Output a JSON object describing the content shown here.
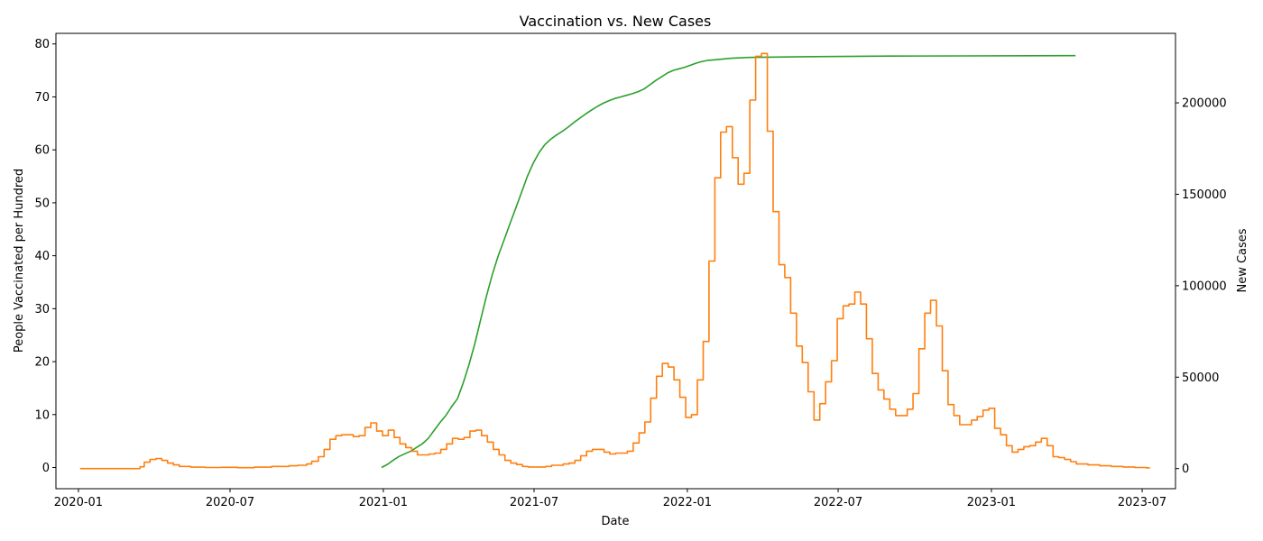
{
  "chart_data": {
    "type": "line",
    "title": "Vaccination vs. New Cases",
    "xlabel": "Date",
    "x_axis_type": "date",
    "xlim": [
      "2019-12-05",
      "2023-08-10"
    ],
    "x_ticks": [
      "2020-01",
      "2020-07",
      "2021-01",
      "2021-07",
      "2022-01",
      "2022-07",
      "2023-01",
      "2023-07"
    ],
    "grid": false,
    "y_left": {
      "label": "People Vaccinated per Hundred",
      "color": "#2ca02c",
      "ylim": [
        -4,
        82
      ],
      "ticks": [
        "0",
        "10",
        "20",
        "30",
        "40",
        "50",
        "60",
        "70",
        "80"
      ]
    },
    "y_right": {
      "label": "New Cases",
      "color": "#ff7f0e",
      "ylim": [
        -11000,
        238000
      ],
      "ticks": [
        "0",
        "50000",
        "100000",
        "150000",
        "200000"
      ]
    },
    "series": [
      {
        "axis": "left",
        "color": "#2ca02c",
        "points": [
          [
            "2020-12-30",
            0
          ],
          [
            "2021-01-06",
            0.6
          ],
          [
            "2021-01-13",
            1.4
          ],
          [
            "2021-01-20",
            2.1
          ],
          [
            "2021-01-27",
            2.6
          ],
          [
            "2021-02-03",
            3.1
          ],
          [
            "2021-02-10",
            3.8
          ],
          [
            "2021-02-17",
            4.5
          ],
          [
            "2021-02-24",
            5.5
          ],
          [
            "2021-03-03",
            7.0
          ],
          [
            "2021-03-10",
            8.5
          ],
          [
            "2021-03-17",
            9.8
          ],
          [
            "2021-03-24",
            11.5
          ],
          [
            "2021-03-31",
            13.0
          ],
          [
            "2021-04-07",
            16.0
          ],
          [
            "2021-04-14",
            19.5
          ],
          [
            "2021-04-21",
            23.5
          ],
          [
            "2021-04-28",
            28.0
          ],
          [
            "2021-05-05",
            32.5
          ],
          [
            "2021-05-12",
            36.5
          ],
          [
            "2021-05-19",
            40.0
          ],
          [
            "2021-05-26",
            43.0
          ],
          [
            "2021-06-02",
            46.0
          ],
          [
            "2021-06-09",
            49.0
          ],
          [
            "2021-06-16",
            52.0
          ],
          [
            "2021-06-23",
            55.0
          ],
          [
            "2021-06-30",
            57.5
          ],
          [
            "2021-07-07",
            59.5
          ],
          [
            "2021-07-14",
            61.0
          ],
          [
            "2021-07-21",
            62.0
          ],
          [
            "2021-07-28",
            62.8
          ],
          [
            "2021-08-04",
            63.5
          ],
          [
            "2021-08-11",
            64.3
          ],
          [
            "2021-08-18",
            65.2
          ],
          [
            "2021-08-25",
            66.0
          ],
          [
            "2021-09-01",
            66.8
          ],
          [
            "2021-09-08",
            67.5
          ],
          [
            "2021-09-15",
            68.2
          ],
          [
            "2021-09-22",
            68.8
          ],
          [
            "2021-09-29",
            69.3
          ],
          [
            "2021-10-06",
            69.7
          ],
          [
            "2021-10-13",
            70.0
          ],
          [
            "2021-10-20",
            70.3
          ],
          [
            "2021-10-27",
            70.6
          ],
          [
            "2021-11-03",
            71.0
          ],
          [
            "2021-11-10",
            71.5
          ],
          [
            "2021-11-17",
            72.3
          ],
          [
            "2021-11-24",
            73.1
          ],
          [
            "2021-12-01",
            73.8
          ],
          [
            "2021-12-08",
            74.5
          ],
          [
            "2021-12-15",
            75.0
          ],
          [
            "2021-12-22",
            75.3
          ],
          [
            "2021-12-29",
            75.6
          ],
          [
            "2022-01-05",
            76.0
          ],
          [
            "2022-01-12",
            76.4
          ],
          [
            "2022-01-19",
            76.7
          ],
          [
            "2022-01-26",
            76.9
          ],
          [
            "2022-02-09",
            77.1
          ],
          [
            "2022-02-23",
            77.3
          ],
          [
            "2022-03-16",
            77.45
          ],
          [
            "2022-04-06",
            77.5
          ],
          [
            "2022-06-01",
            77.6
          ],
          [
            "2022-09-01",
            77.7
          ],
          [
            "2022-12-01",
            77.75
          ],
          [
            "2023-04-12",
            77.8
          ]
        ]
      },
      {
        "axis": "right",
        "color": "#ff7f0e",
        "step": true,
        "points": [
          [
            "2020-01-03",
            0
          ],
          [
            "2020-03-15",
            1000
          ],
          [
            "2020-03-20",
            3500
          ],
          [
            "2020-03-27",
            5000
          ],
          [
            "2020-04-03",
            5500
          ],
          [
            "2020-04-10",
            4500
          ],
          [
            "2020-04-17",
            3000
          ],
          [
            "2020-04-24",
            2000
          ],
          [
            "2020-05-01",
            1200
          ],
          [
            "2020-05-15",
            800
          ],
          [
            "2020-06-01",
            600
          ],
          [
            "2020-06-20",
            700
          ],
          [
            "2020-07-10",
            500
          ],
          [
            "2020-07-30",
            800
          ],
          [
            "2020-08-20",
            1200
          ],
          [
            "2020-09-10",
            1500
          ],
          [
            "2020-09-20",
            1800
          ],
          [
            "2020-10-01",
            2500
          ],
          [
            "2020-10-07",
            4000
          ],
          [
            "2020-10-15",
            6500
          ],
          [
            "2020-10-22",
            10500
          ],
          [
            "2020-10-29",
            16000
          ],
          [
            "2020-11-05",
            18000
          ],
          [
            "2020-11-12",
            18500
          ],
          [
            "2020-11-26",
            17500
          ],
          [
            "2020-12-03",
            18000
          ],
          [
            "2020-12-10",
            22500
          ],
          [
            "2020-12-17",
            25000
          ],
          [
            "2020-12-24",
            20500
          ],
          [
            "2020-12-31",
            18000
          ],
          [
            "2021-01-07",
            21000
          ],
          [
            "2021-01-14",
            17000
          ],
          [
            "2021-01-21",
            13500
          ],
          [
            "2021-01-28",
            11500
          ],
          [
            "2021-02-04",
            9500
          ],
          [
            "2021-02-11",
            7500
          ],
          [
            "2021-02-25",
            8000
          ],
          [
            "2021-03-04",
            8500
          ],
          [
            "2021-03-11",
            10500
          ],
          [
            "2021-03-18",
            13500
          ],
          [
            "2021-03-25",
            16500
          ],
          [
            "2021-04-01",
            16000
          ],
          [
            "2021-04-08",
            17000
          ],
          [
            "2021-04-15",
            20500
          ],
          [
            "2021-04-22",
            21000
          ],
          [
            "2021-04-29",
            18000
          ],
          [
            "2021-05-06",
            14500
          ],
          [
            "2021-05-13",
            10500
          ],
          [
            "2021-05-20",
            7500
          ],
          [
            "2021-05-27",
            4500
          ],
          [
            "2021-06-03",
            3000
          ],
          [
            "2021-06-10",
            2200
          ],
          [
            "2021-06-17",
            1200
          ],
          [
            "2021-06-24",
            900
          ],
          [
            "2021-07-15",
            1200
          ],
          [
            "2021-07-22",
            1800
          ],
          [
            "2021-08-05",
            2500
          ],
          [
            "2021-08-12",
            3000
          ],
          [
            "2021-08-19",
            4500
          ],
          [
            "2021-08-26",
            7000
          ],
          [
            "2021-09-02",
            9500
          ],
          [
            "2021-09-09",
            10500
          ],
          [
            "2021-09-23",
            9000
          ],
          [
            "2021-09-30",
            8000
          ],
          [
            "2021-10-07",
            8500
          ],
          [
            "2021-10-21",
            9500
          ],
          [
            "2021-10-28",
            14000
          ],
          [
            "2021-11-04",
            19500
          ],
          [
            "2021-11-11",
            25500
          ],
          [
            "2021-11-18",
            38500
          ],
          [
            "2021-11-25",
            50500
          ],
          [
            "2021-12-02",
            57500
          ],
          [
            "2021-12-09",
            55500
          ],
          [
            "2021-12-16",
            48500
          ],
          [
            "2021-12-23",
            39000
          ],
          [
            "2021-12-30",
            28000
          ],
          [
            "2022-01-06",
            29500
          ],
          [
            "2022-01-13",
            48500
          ],
          [
            "2022-01-20",
            69500
          ],
          [
            "2022-01-27",
            113500
          ],
          [
            "2022-02-03",
            159000
          ],
          [
            "2022-02-10",
            184000
          ],
          [
            "2022-02-17",
            187000
          ],
          [
            "2022-02-24",
            170000
          ],
          [
            "2022-03-03",
            155500
          ],
          [
            "2022-03-10",
            161500
          ],
          [
            "2022-03-17",
            201500
          ],
          [
            "2022-03-24",
            225500
          ],
          [
            "2022-03-31",
            227000
          ],
          [
            "2022-04-07",
            184500
          ],
          [
            "2022-04-14",
            140500
          ],
          [
            "2022-04-21",
            111500
          ],
          [
            "2022-04-28",
            104500
          ],
          [
            "2022-05-05",
            85000
          ],
          [
            "2022-05-12",
            67000
          ],
          [
            "2022-05-19",
            58000
          ],
          [
            "2022-05-26",
            42000
          ],
          [
            "2022-06-02",
            26500
          ],
          [
            "2022-06-09",
            35500
          ],
          [
            "2022-06-16",
            47500
          ],
          [
            "2022-06-23",
            59000
          ],
          [
            "2022-06-30",
            82000
          ],
          [
            "2022-07-07",
            89000
          ],
          [
            "2022-07-14",
            90000
          ],
          [
            "2022-07-21",
            96500
          ],
          [
            "2022-07-28",
            90000
          ],
          [
            "2022-08-04",
            71000
          ],
          [
            "2022-08-11",
            52000
          ],
          [
            "2022-08-18",
            43000
          ],
          [
            "2022-08-25",
            38000
          ],
          [
            "2022-09-01",
            32500
          ],
          [
            "2022-09-08",
            29000
          ],
          [
            "2022-09-22",
            32500
          ],
          [
            "2022-09-29",
            41000
          ],
          [
            "2022-10-06",
            65500
          ],
          [
            "2022-10-13",
            85000
          ],
          [
            "2022-10-20",
            92000
          ],
          [
            "2022-10-27",
            78000
          ],
          [
            "2022-11-03",
            53500
          ],
          [
            "2022-11-10",
            35000
          ],
          [
            "2022-11-17",
            29000
          ],
          [
            "2022-11-24",
            24000
          ],
          [
            "2022-12-08",
            26500
          ],
          [
            "2022-12-15",
            28500
          ],
          [
            "2022-12-22",
            32000
          ],
          [
            "2022-12-29",
            33000
          ],
          [
            "2023-01-05",
            22000
          ],
          [
            "2023-01-12",
            18500
          ],
          [
            "2023-01-19",
            12500
          ],
          [
            "2023-01-26",
            9000
          ],
          [
            "2023-02-02",
            10500
          ],
          [
            "2023-02-09",
            12000
          ],
          [
            "2023-02-16",
            12500
          ],
          [
            "2023-02-23",
            14500
          ],
          [
            "2023-03-02",
            16500
          ],
          [
            "2023-03-09",
            12500
          ],
          [
            "2023-03-16",
            6500
          ],
          [
            "2023-03-23",
            6000
          ],
          [
            "2023-03-30",
            5000
          ],
          [
            "2023-04-06",
            3800
          ],
          [
            "2023-04-13",
            2500
          ],
          [
            "2023-04-27",
            2000
          ],
          [
            "2023-05-11",
            1500
          ],
          [
            "2023-05-25",
            1200
          ],
          [
            "2023-06-08",
            900
          ],
          [
            "2023-06-22",
            600
          ],
          [
            "2023-07-06",
            400
          ]
        ]
      }
    ]
  }
}
